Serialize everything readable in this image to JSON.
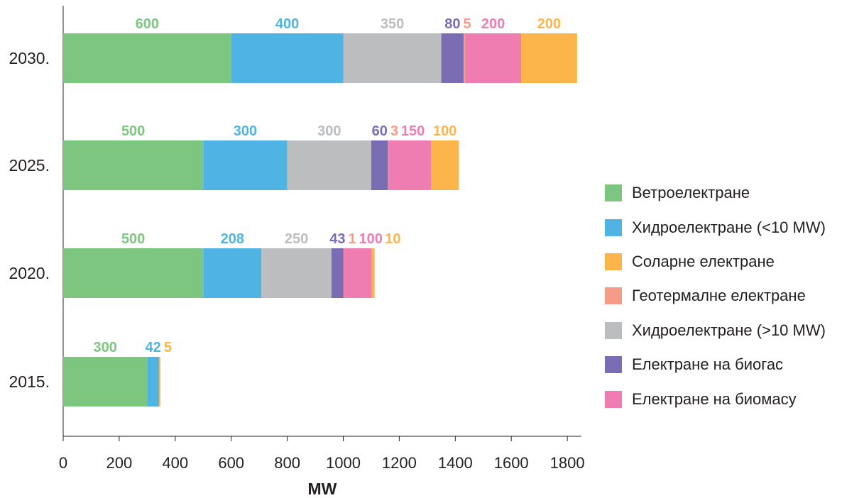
{
  "chart_data": {
    "type": "bar",
    "orientation": "horizontal",
    "stacked": true,
    "xlabel": "MW",
    "xlim": [
      0,
      1850
    ],
    "x_ticks": [
      0,
      200,
      400,
      600,
      800,
      1000,
      1200,
      1400,
      1600,
      1800
    ],
    "categories": [
      "2030.",
      "2025.",
      "2020.",
      "2015."
    ],
    "series": [
      {
        "name": "Ветроелектране",
        "color": "#7dc67f",
        "values": [
          600,
          500,
          500,
          300
        ],
        "labels": [
          "600",
          "500",
          "500",
          "300"
        ]
      },
      {
        "name": "Хидроелектране (<10 MW)",
        "color": "#4fb4e4",
        "values": [
          400,
          300,
          208,
          42
        ],
        "labels": [
          "400",
          "300",
          "208",
          "42"
        ]
      },
      {
        "name": "Хидроелектране (>10 MW)",
        "color": "#bcbdbf",
        "values": [
          350,
          300,
          250,
          0
        ],
        "labels": [
          "350",
          "300",
          "250",
          ""
        ]
      },
      {
        "name": "Електране на биогас",
        "color": "#7b6db3",
        "values": [
          80,
          60,
          43,
          0
        ],
        "labels": [
          "80",
          "60",
          "43",
          ""
        ]
      },
      {
        "name": "Геотермалне електране",
        "color": "#f69b88",
        "values": [
          5,
          3,
          1,
          0
        ],
        "labels": [
          "5",
          "3",
          "1",
          ""
        ]
      },
      {
        "name": "Електране на биомасу",
        "color": "#f07db1",
        "values": [
          200,
          150,
          100,
          0
        ],
        "labels": [
          "200",
          "150",
          "100",
          ""
        ]
      },
      {
        "name": "Соларне електране",
        "color": "#fbb54a",
        "values": [
          200,
          100,
          10,
          5
        ],
        "labels": [
          "200",
          "100",
          "10",
          "5"
        ]
      }
    ],
    "legend_order": [
      "Ветроелектране",
      "Хидроелектране (<10 MW)",
      "Соларне електране",
      "Геотермалне електране",
      "Хидроелектране (>10 MW)",
      "Електране на биогас",
      "Електране на биомасу"
    ],
    "legend_position": "right",
    "grid": false
  }
}
